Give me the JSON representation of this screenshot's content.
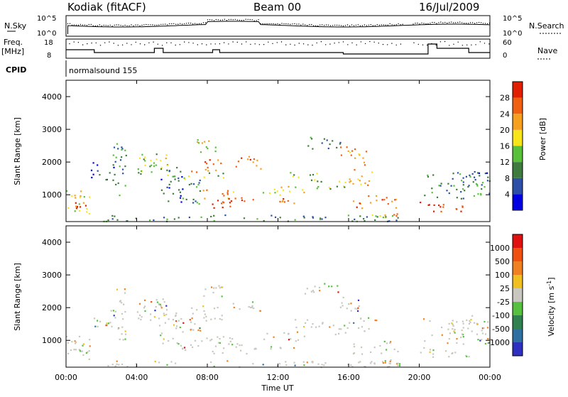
{
  "header": {
    "station": "Kodiak (fitACF)",
    "beam": "Beam 00",
    "date": "16/Jul/2009"
  },
  "status_panels": {
    "nsky_label": "N.Sky",
    "nsky_ticks": [
      "10^5",
      "10^0"
    ],
    "nsearch_label": "N.Search",
    "nsearch_ticks": [
      "10^5",
      "10^0"
    ],
    "freq_label_1": "Freq.",
    "freq_label_2": "[MHz]",
    "freq_ticks": [
      "18",
      "8"
    ],
    "nave_label": "Nave",
    "nave_ticks": [
      "60",
      "0"
    ],
    "cpid_label": "CPID",
    "cpid_value": "normalsound 155"
  },
  "colors": {
    "power_scale": [
      "#0000e0",
      "#2e4fa8",
      "#3f7a3f",
      "#58c03a",
      "#f7e51a",
      "#f7a020",
      "#f06010",
      "#e02000"
    ],
    "velocity_scale": [
      "#3030c0",
      "#3070a0",
      "#308050",
      "#58c040",
      "#c8c8c0",
      "#f0c020",
      "#f08020",
      "#f05010",
      "#e01010"
    ]
  },
  "chart_data": [
    {
      "type": "heatmap",
      "quantity": "Power",
      "ylabel": "Slant Range [km]",
      "ylim": [
        180,
        4500
      ],
      "yticks": [
        1000,
        2000,
        3000,
        4000
      ],
      "colorbar_label": "Power [dB]",
      "colorbar_ticks": [
        "28",
        "24",
        "20",
        "16",
        "12",
        "8",
        "4"
      ],
      "xlim_hours": [
        0,
        24
      ]
    },
    {
      "type": "heatmap",
      "quantity": "Velocity",
      "ylabel": "Slant Range [km]",
      "ylim": [
        180,
        4500
      ],
      "yticks": [
        1000,
        2000,
        3000,
        4000
      ],
      "colorbar_label": "Velocity [m s-1]",
      "colorbar_ticks": [
        "1000",
        "500",
        "100",
        "25",
        "-25",
        "-100",
        "-500",
        "-1000"
      ],
      "xlim_hours": [
        0,
        24
      ]
    }
  ],
  "xaxis": {
    "ticks": [
      "00:00",
      "04:00",
      "08:00",
      "12:00",
      "16:00",
      "20:00",
      "00:00"
    ],
    "label": "Time UT"
  }
}
